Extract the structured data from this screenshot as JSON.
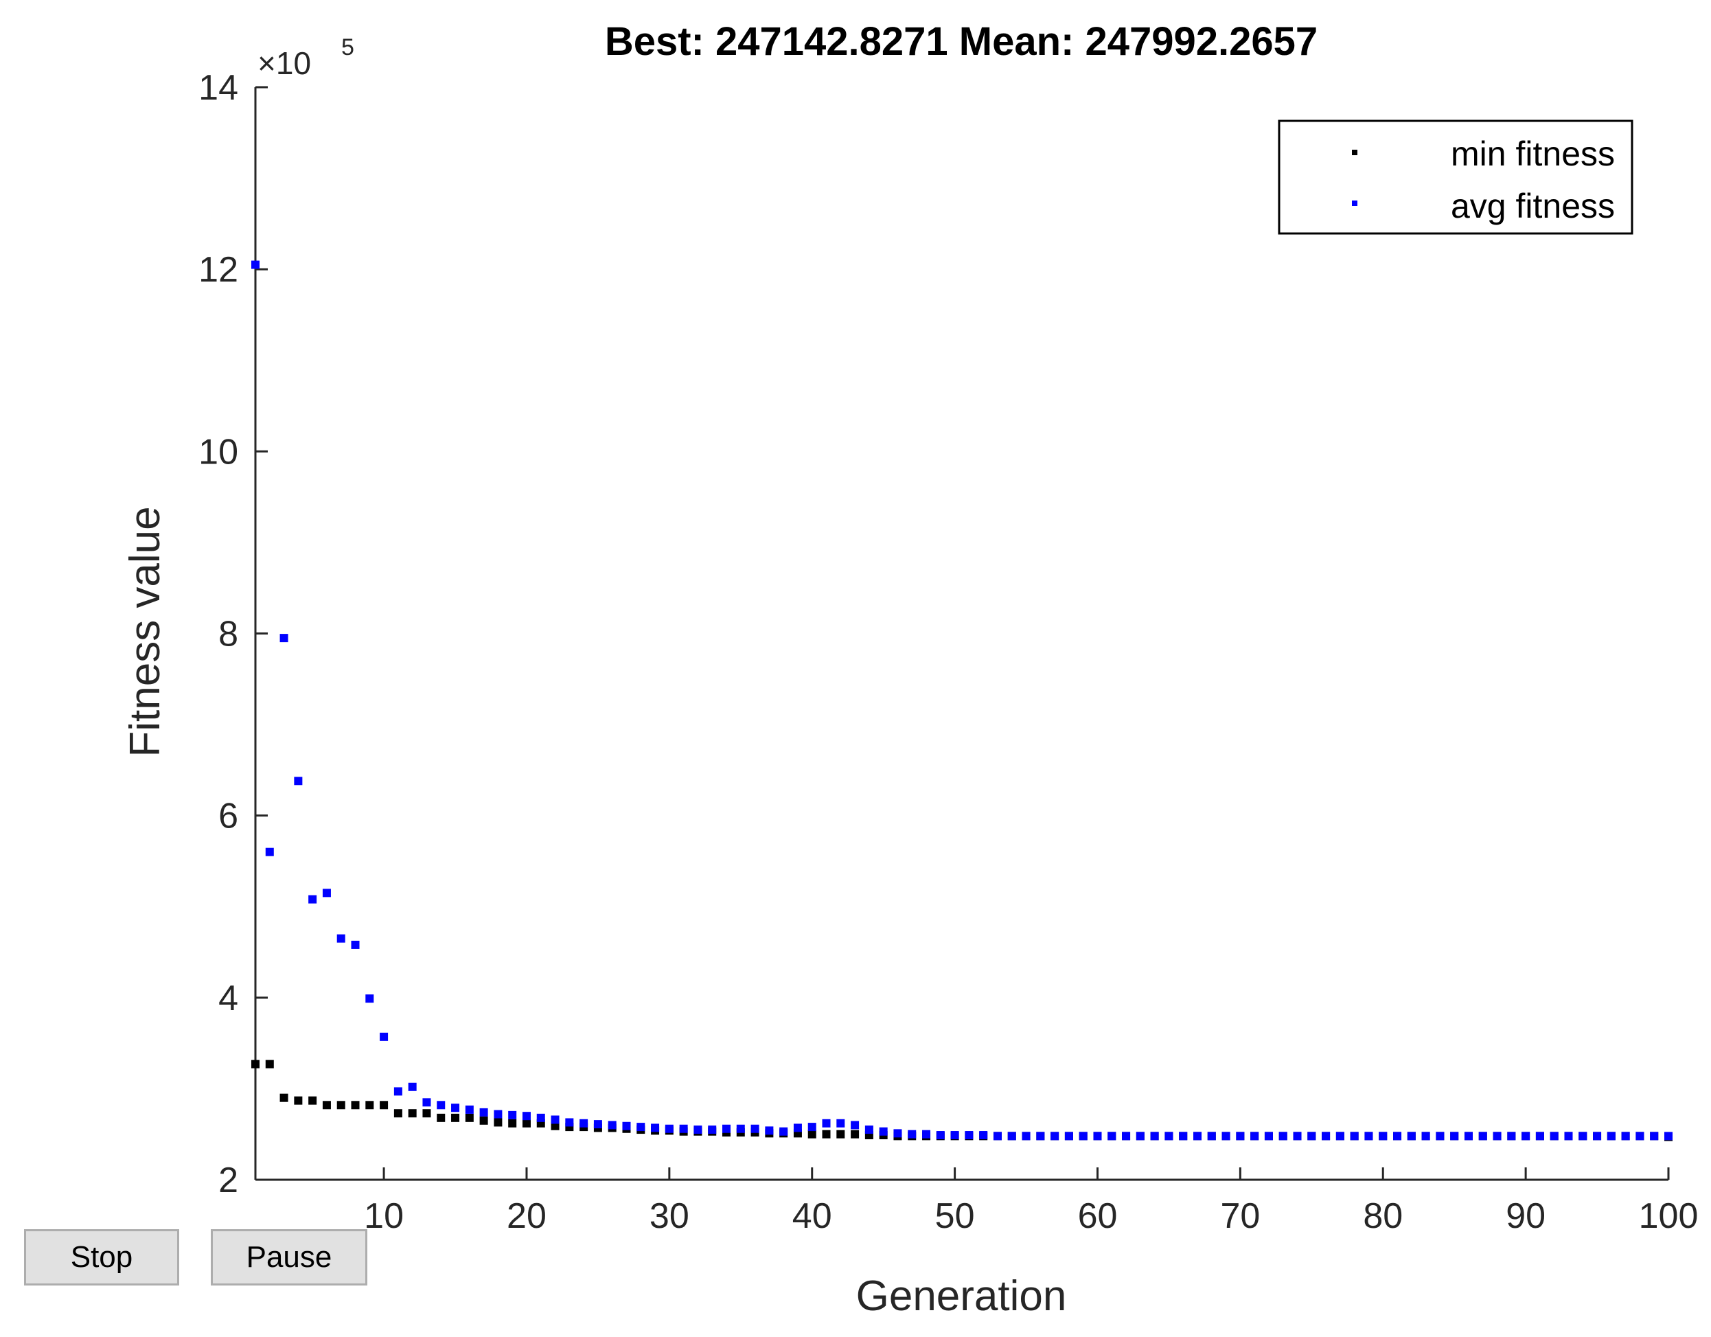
{
  "colors": {
    "axis": "#262626",
    "min_series": "#000000",
    "avg_series": "#0000ff",
    "button_bg": "#e1e1e1",
    "button_border": "#adadad"
  },
  "buttons": {
    "stop_label": "Stop",
    "pause_label": "Pause"
  },
  "chart_data": {
    "type": "scatter",
    "title": "Best: 247142.8271 Mean: 247992.2657",
    "xlabel": "Generation",
    "ylabel": "Fitness value",
    "y_exponent_label": "×10",
    "y_exponent_power": "5",
    "xlim": [
      1,
      100
    ],
    "ylim": [
      2,
      14
    ],
    "x_ticks": [
      10,
      20,
      30,
      40,
      50,
      60,
      70,
      80,
      90,
      100
    ],
    "x_tick_labels": [
      "10",
      "20",
      "30",
      "40",
      "50",
      "60",
      "70",
      "80",
      "90",
      "100"
    ],
    "y_ticks": [
      2,
      4,
      6,
      8,
      10,
      12,
      14
    ],
    "y_tick_labels": [
      "2",
      "4",
      "6",
      "8",
      "10",
      "12",
      "14"
    ],
    "grid": false,
    "legend_position": "top-right",
    "series": [
      {
        "name": "min fitness",
        "color": "#000000",
        "values": [
          3.27,
          3.27,
          2.9,
          2.87,
          2.87,
          2.82,
          2.82,
          2.82,
          2.82,
          2.82,
          2.73,
          2.73,
          2.73,
          2.68,
          2.68,
          2.68,
          2.65,
          2.63,
          2.62,
          2.62,
          2.62,
          2.59,
          2.58,
          2.58,
          2.57,
          2.57,
          2.56,
          2.55,
          2.54,
          2.54,
          2.53,
          2.53,
          2.53,
          2.52,
          2.52,
          2.52,
          2.51,
          2.51,
          2.51,
          2.5,
          2.5,
          2.5,
          2.5,
          2.49,
          2.49,
          2.48,
          2.48,
          2.48,
          2.48,
          2.48,
          2.48,
          2.48,
          2.48,
          2.48,
          2.48,
          2.48,
          2.48,
          2.48,
          2.48,
          2.48,
          2.48,
          2.48,
          2.48,
          2.48,
          2.48,
          2.48,
          2.48,
          2.48,
          2.48,
          2.48,
          2.48,
          2.48,
          2.48,
          2.48,
          2.48,
          2.48,
          2.48,
          2.48,
          2.48,
          2.48,
          2.48,
          2.48,
          2.48,
          2.48,
          2.48,
          2.48,
          2.48,
          2.48,
          2.48,
          2.48,
          2.48,
          2.48,
          2.48,
          2.48,
          2.48,
          2.48,
          2.48,
          2.48,
          2.48,
          2.47
        ]
      },
      {
        "name": "avg fitness",
        "color": "#0000ff",
        "values": [
          12.05,
          5.6,
          7.95,
          6.38,
          5.08,
          5.15,
          4.65,
          4.58,
          3.99,
          3.57,
          2.97,
          3.02,
          2.85,
          2.82,
          2.79,
          2.77,
          2.74,
          2.72,
          2.71,
          2.7,
          2.68,
          2.66,
          2.63,
          2.62,
          2.61,
          2.6,
          2.59,
          2.58,
          2.57,
          2.56,
          2.56,
          2.55,
          2.55,
          2.56,
          2.56,
          2.56,
          2.54,
          2.53,
          2.57,
          2.58,
          2.62,
          2.62,
          2.6,
          2.55,
          2.53,
          2.51,
          2.5,
          2.5,
          2.49,
          2.49,
          2.49,
          2.49,
          2.48,
          2.48,
          2.48,
          2.48,
          2.48,
          2.48,
          2.48,
          2.48,
          2.48,
          2.48,
          2.48,
          2.48,
          2.48,
          2.48,
          2.48,
          2.48,
          2.48,
          2.48,
          2.48,
          2.48,
          2.48,
          2.48,
          2.48,
          2.48,
          2.48,
          2.48,
          2.48,
          2.48,
          2.48,
          2.48,
          2.48,
          2.48,
          2.48,
          2.48,
          2.48,
          2.48,
          2.48,
          2.48,
          2.48,
          2.48,
          2.48,
          2.48,
          2.48,
          2.48,
          2.48,
          2.48,
          2.48,
          2.48
        ]
      }
    ]
  }
}
